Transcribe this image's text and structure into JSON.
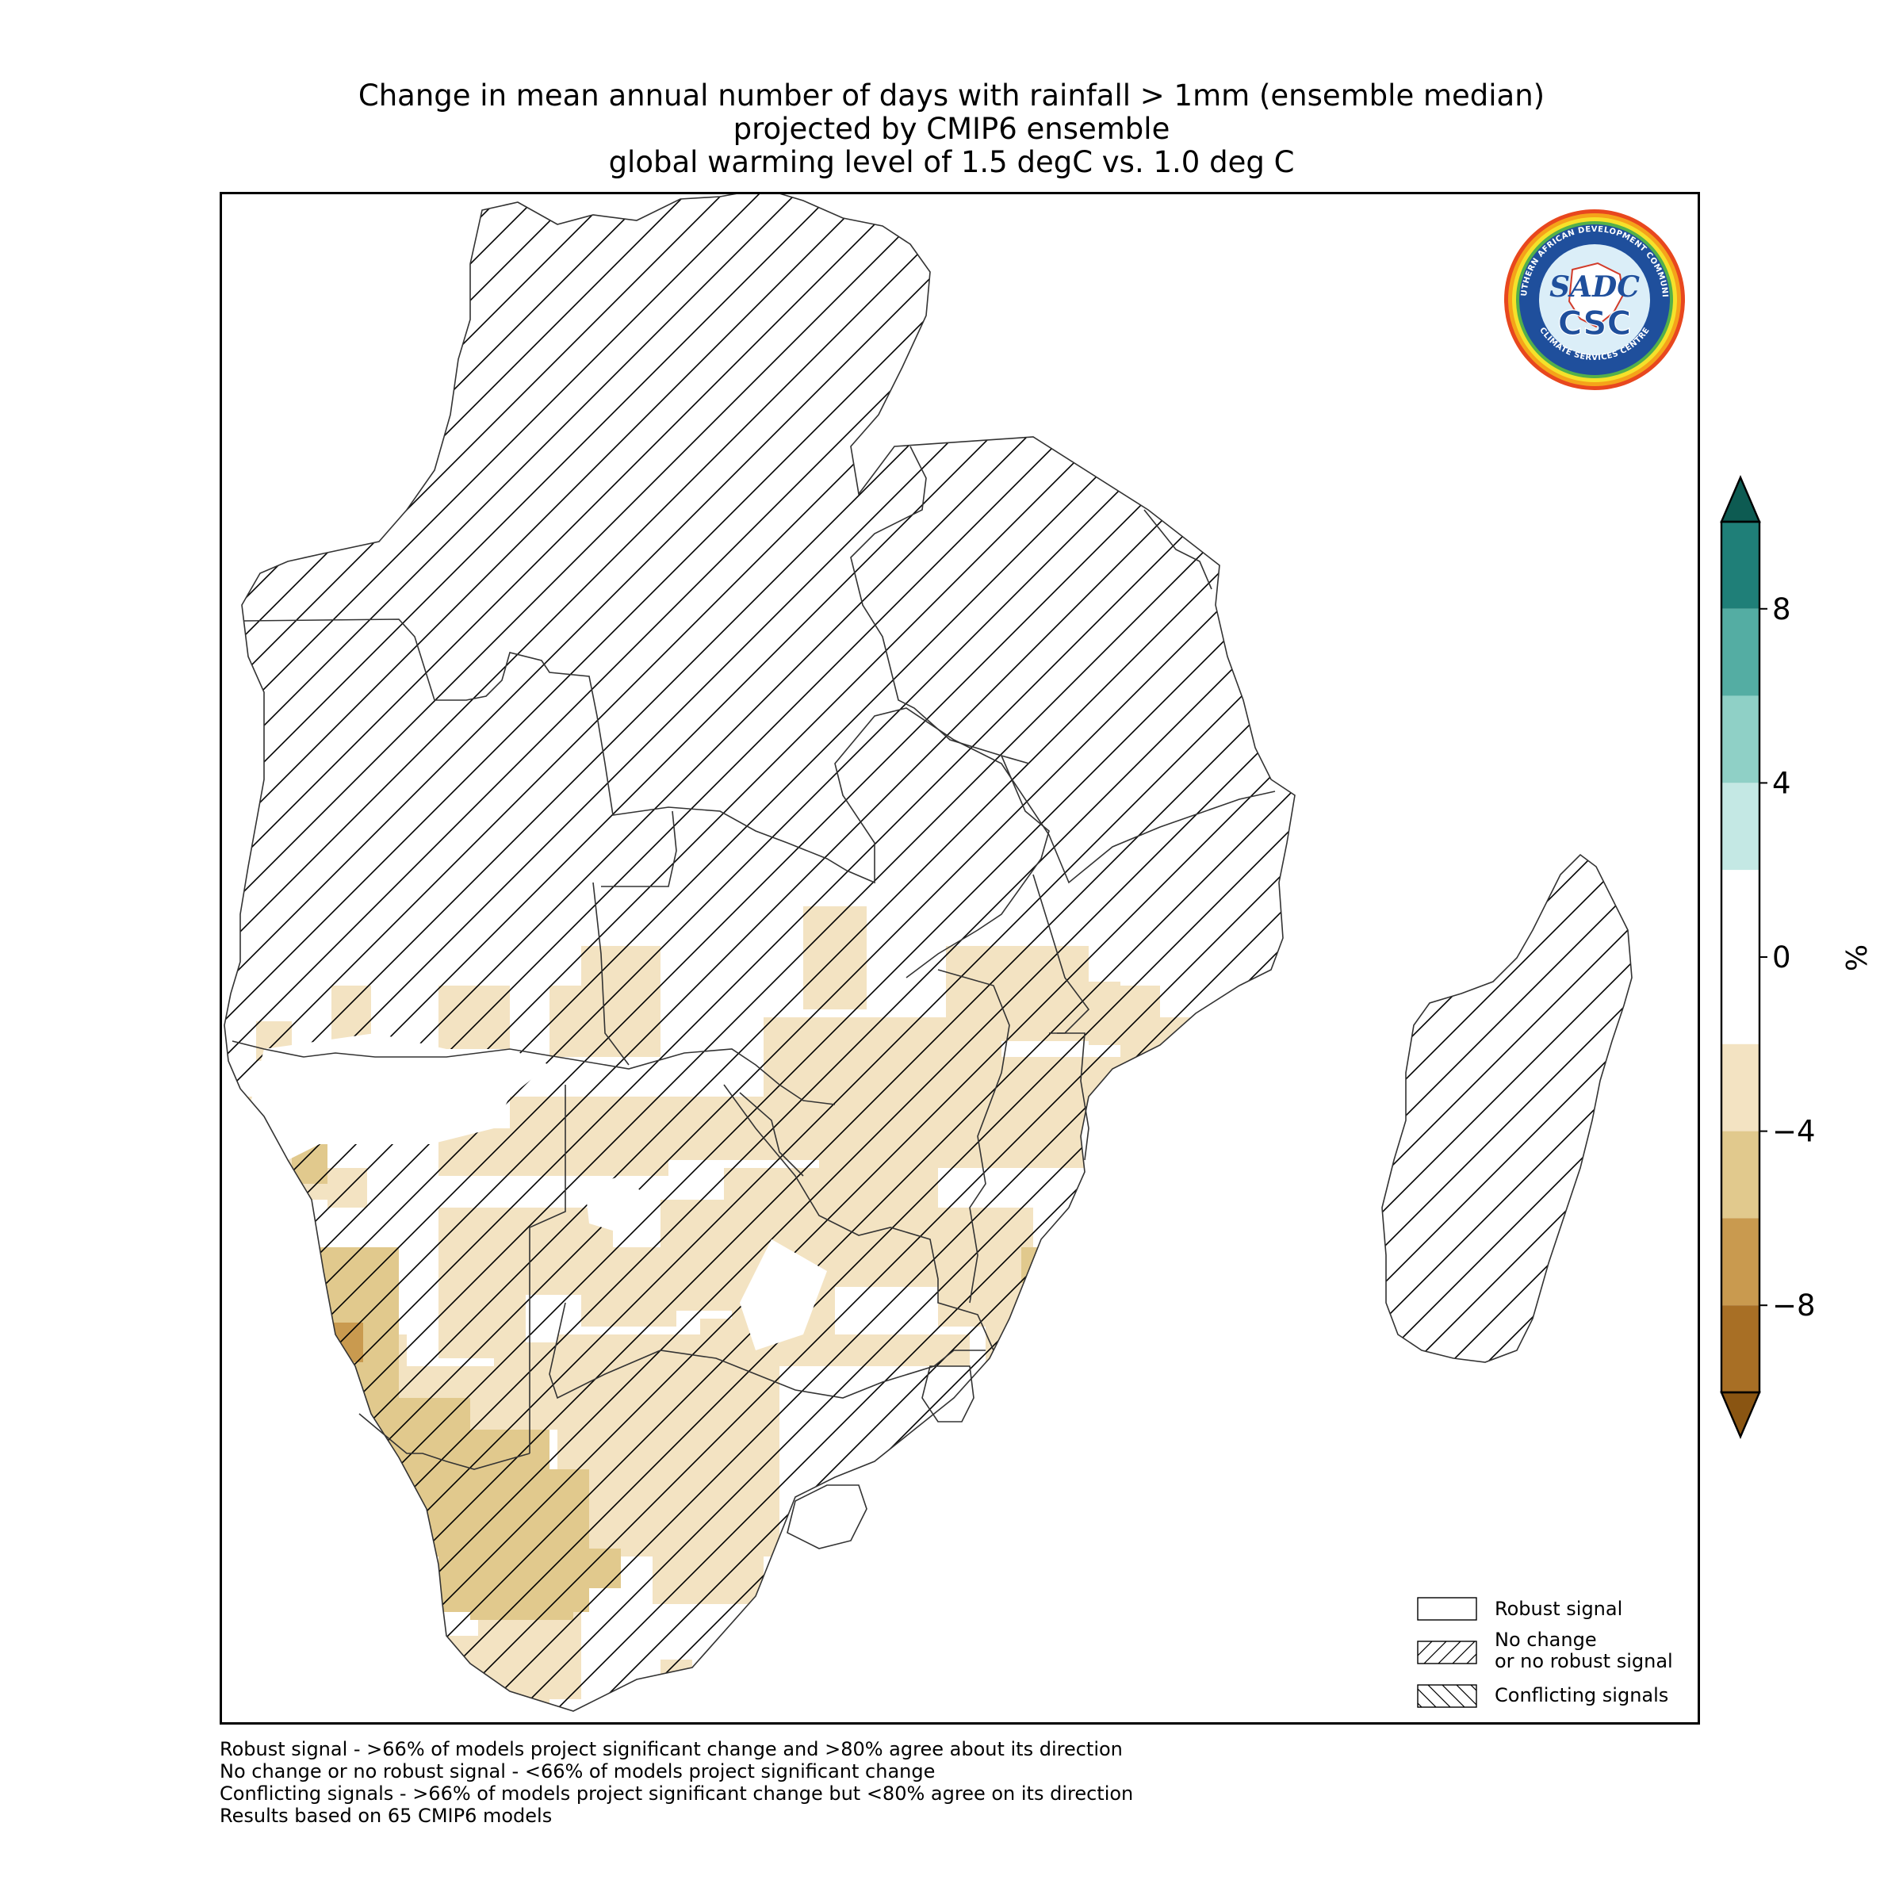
{
  "title": {
    "line1": "Change in mean annual number of days with rainfall > 1mm (ensemble median)",
    "line2": "projected by CMIP6 ensemble",
    "line3": "global warming level of 1.5 degC vs. 1.0 deg C"
  },
  "logo": {
    "ring_text_top": "SOUTHERN AFRICAN DEVELOPMENT COMMUNITY",
    "ring_text_bottom": "CLIMATE SERVICES CENTRE",
    "mark_top": "SADC",
    "mark_bottom": "CSC"
  },
  "legend": {
    "robust": "Robust signal",
    "no_change_line1": "No change",
    "no_change_line2": "or no robust signal",
    "conflicting": "Conflicting signals"
  },
  "colorbar": {
    "unit": "%",
    "ticks": [
      "8",
      "4",
      "0",
      "−4",
      "−8"
    ],
    "tick_values": [
      8,
      4,
      0,
      -4,
      -8
    ],
    "range": [
      -10,
      10
    ],
    "bins": [
      {
        "from": 8,
        "to": 10,
        "color": "#1f7f78"
      },
      {
        "from": 6,
        "to": 8,
        "color": "#54ada3"
      },
      {
        "from": 4,
        "to": 6,
        "color": "#8fd0c6"
      },
      {
        "from": 2,
        "to": 4,
        "color": "#c4e8e4"
      },
      {
        "from": -2,
        "to": 2,
        "color": "#ffffff"
      },
      {
        "from": -4,
        "to": -2,
        "color": "#f3e3c2"
      },
      {
        "from": -6,
        "to": -4,
        "color": "#e1c98d"
      },
      {
        "from": -8,
        "to": -6,
        "color": "#c99a4f"
      },
      {
        "from": -10,
        "to": -8,
        "color": "#a86f25"
      }
    ],
    "over_color": "#0d5b52",
    "under_color": "#8a5512"
  },
  "footnotes": {
    "line1": "Robust signal - >66% of models project significant change and >80% agree about its direction",
    "line2": "No change or no robust signal - <66% of models project significant change",
    "line3": "Conflicting signals - >66% of models project significant change but <80% agree on its direction",
    "line4": "Results based on 65 CMIP6 models"
  },
  "colors": {
    "light_tan": "#f3e3c2",
    "mid_tan": "#e1c98d",
    "dark_tan": "#c99a4f",
    "darkest_tan": "#a86f25",
    "border": "#333333"
  }
}
